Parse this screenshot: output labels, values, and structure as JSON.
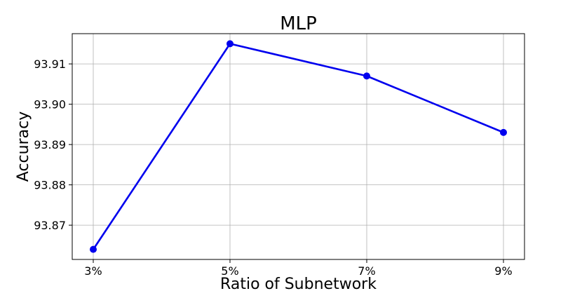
{
  "chart_data": {
    "type": "line",
    "title": "MLP",
    "xlabel": "Ratio of Subnetwork",
    "ylabel": "Accuracy",
    "categories": [
      "3%",
      "5%",
      "7%",
      "9%"
    ],
    "series": [
      {
        "values": [
          93.864,
          93.915,
          93.907,
          93.893
        ],
        "color": "#0000ee"
      }
    ],
    "yticks": [
      93.87,
      93.88,
      93.89,
      93.9,
      93.91
    ],
    "ytick_labels": [
      "93.87",
      "93.88",
      "93.89",
      "93.90",
      "93.91"
    ],
    "ylim": [
      93.8615,
      93.9175
    ],
    "grid": true,
    "marker": "circle"
  }
}
